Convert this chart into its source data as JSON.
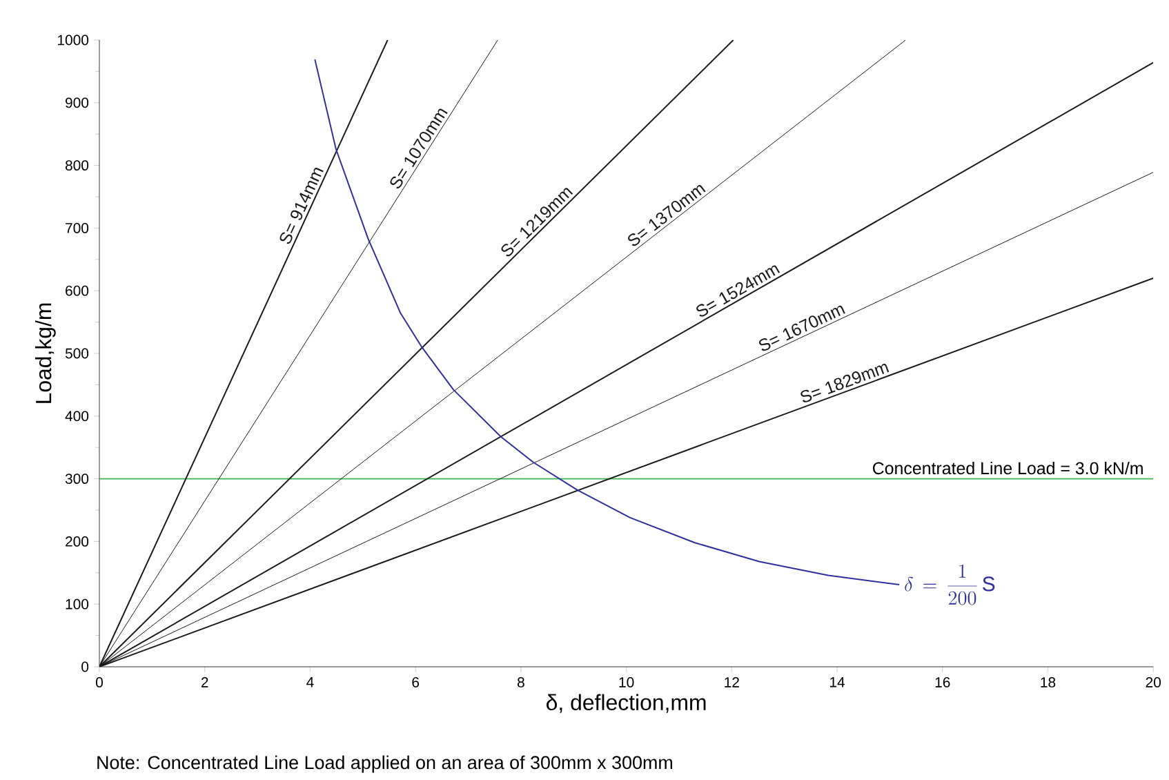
{
  "chart_data": {
    "type": "line",
    "xlabel": "δ, deflection,mm",
    "ylabel": "Load,kg/m",
    "xlim": [
      0,
      20
    ],
    "ylim": [
      0,
      1000
    ],
    "xticks": [
      0,
      2,
      4,
      6,
      8,
      10,
      12,
      14,
      16,
      18,
      20
    ],
    "yticks": [
      0,
      100,
      200,
      300,
      400,
      500,
      600,
      700,
      800,
      900,
      1000
    ],
    "grid": false,
    "marker": "none",
    "line_style": "solid",
    "series": [
      {
        "name": "S= 914mm",
        "color": "#1a1a1a",
        "x": [
          0,
          5.47
        ],
        "values": [
          0,
          1000
        ]
      },
      {
        "name": "S= 1070mm",
        "color": "#1a1a1a",
        "x": [
          0,
          7.56
        ],
        "values": [
          0,
          1000
        ]
      },
      {
        "name": "S= 1219mm",
        "color": "#1a1a1a",
        "x": [
          0,
          12.03
        ],
        "values": [
          0,
          1000
        ]
      },
      {
        "name": "S= 1370mm",
        "color": "#1a1a1a",
        "x": [
          0,
          15.3
        ],
        "values": [
          0,
          1000
        ]
      },
      {
        "name": "S= 1524mm",
        "color": "#1a1a1a",
        "x": [
          0,
          20
        ],
        "values": [
          0,
          964
        ]
      },
      {
        "name": "S= 1670mm",
        "color": "#1a1a1a",
        "x": [
          0,
          20
        ],
        "values": [
          0,
          789
        ]
      },
      {
        "name": "S= 1829mm",
        "color": "#1a1a1a",
        "x": [
          0,
          20
        ],
        "values": [
          0,
          620
        ]
      },
      {
        "name": "\\delta\\,=\\,\\frac{1}{200}\\,\\mathrm{S}",
        "color": "#2e2e9e",
        "x": [
          4.09,
          4.49,
          5.1,
          5.71,
          6.12,
          6.72,
          7.62,
          8.24,
          9.07,
          10.07,
          11.3,
          12.52,
          13.83,
          15.18
        ],
        "values": [
          969,
          826,
          683,
          565,
          510,
          442,
          367,
          326,
          282,
          238,
          198,
          168,
          146,
          131
        ]
      }
    ],
    "ref_lines": [
      {
        "axis": "y",
        "value": 300,
        "color": "#3cb44b"
      }
    ],
    "annotations": [
      "Note: Concentrated Line Load applied on an area of 300mm x 300mm",
      "Concentrated Line Load = 3.0 kN/m"
    ]
  }
}
